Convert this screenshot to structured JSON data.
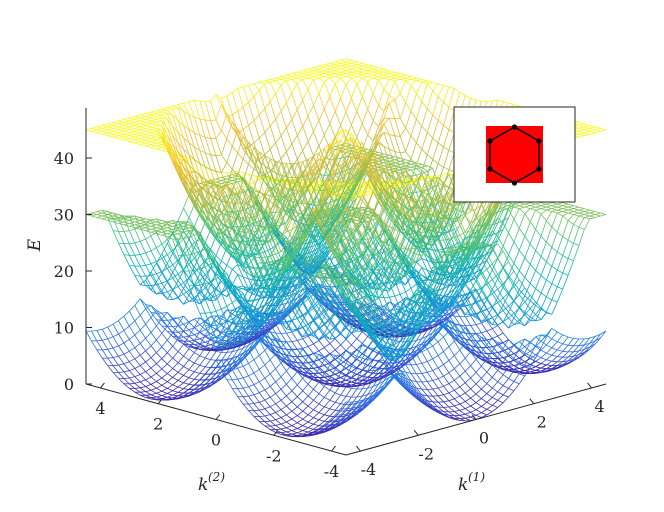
{
  "chart_data": {
    "type": "surface",
    "title": "",
    "xlabel_base": "k",
    "xlabel_sup": "(1)",
    "ylabel_base": "k",
    "ylabel_sup": "(2)",
    "zlabel": "E",
    "xlim": [
      -4.5,
      4.5
    ],
    "ylim": [
      -4.5,
      4.5
    ],
    "zlim": [
      0,
      45
    ],
    "x_ticks": [
      {
        "value": -4,
        "label": "-4"
      },
      {
        "value": -2,
        "label": "-2"
      },
      {
        "value": 0,
        "label": "0"
      },
      {
        "value": 2,
        "label": "2"
      },
      {
        "value": 4,
        "label": "4"
      }
    ],
    "y_ticks": [
      {
        "value": 4,
        "label": "4"
      },
      {
        "value": 2,
        "label": "2"
      },
      {
        "value": 0,
        "label": "0"
      },
      {
        "value": -2,
        "label": "-2"
      },
      {
        "value": -4,
        "label": "-4"
      }
    ],
    "z_ticks": [
      {
        "value": 0,
        "label": "0"
      },
      {
        "value": 10,
        "label": "10"
      },
      {
        "value": 20,
        "label": "20"
      },
      {
        "value": 30,
        "label": "30"
      },
      {
        "value": 40,
        "label": "40"
      }
    ],
    "bands": [
      {
        "index": 1,
        "approx_range": [
          0,
          20
        ]
      },
      {
        "index": 2,
        "approx_range": [
          8,
          30
        ]
      },
      {
        "index": 3,
        "approx_range": [
          18,
          45
        ]
      }
    ],
    "colormap": "parula",
    "grid": false,
    "inset": {
      "description": "first Brillouin zone",
      "square_color": "#ff0000",
      "hexagon_stroke": "#000000",
      "placement": "top-right"
    }
  }
}
